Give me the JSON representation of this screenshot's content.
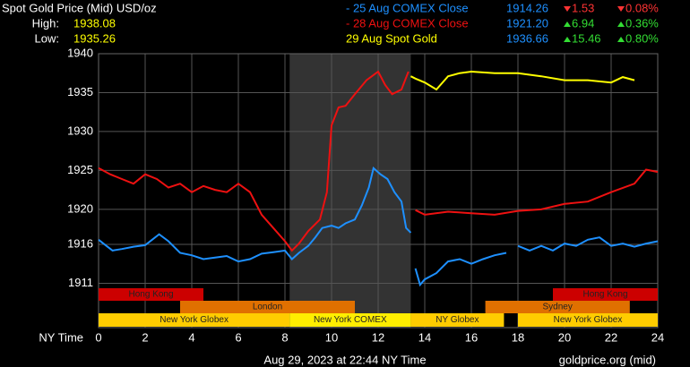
{
  "chart_data": {
    "type": "line",
    "title": "Spot Gold Price (Mid) USD/oz",
    "high_label": "High:",
    "high": "1938.08",
    "low_label": "Low:",
    "low": "1935.26",
    "xlabel": "NY Time",
    "footer": "Aug 29, 2023 at 22:44 NY Time",
    "source": "goldprice.org (mid)",
    "xlim": [
      0,
      24
    ],
    "xticks": [
      0,
      2,
      4,
      6,
      8,
      10,
      12,
      14,
      16,
      18,
      20,
      22,
      24
    ],
    "ylim": [
      1904.8,
      1940
    ],
    "yticks": [
      1940,
      1935,
      1930,
      1925,
      1920,
      {
        "value": 1915.5,
        "label": "1916"
      },
      {
        "value": 1910.5,
        "label": "1911"
      }
    ],
    "grid": true,
    "shaded": [
      8.2,
      13.4
    ],
    "series": [
      {
        "name": "- 25 Aug COMEX Close",
        "color": "#1e90ff",
        "close": "1914.26",
        "direction": "down",
        "change": "1.53",
        "change_pct": "0.08%",
        "x": [
          0,
          0.3,
          0.6,
          1,
          1.5,
          2,
          2.3,
          2.6,
          3,
          3.5,
          4,
          4.5,
          5,
          5.5,
          6,
          6.5,
          7,
          7.5,
          8,
          8.3,
          8.6,
          9,
          9.3,
          9.6,
          10,
          10.3,
          10.6,
          11,
          11.3,
          11.6,
          11.8,
          12.1,
          12.4,
          12.7,
          13,
          13.2,
          13.4,
          13.5,
          13.6,
          13.8,
          14,
          14.5,
          15,
          15.5,
          16,
          16.5,
          17,
          17.5,
          17.7,
          18,
          18.5,
          19,
          19.5,
          20,
          20.5,
          21,
          21.5,
          22,
          22.5,
          23,
          23.5,
          24
        ],
        "values": [
          1916.1,
          1915.4,
          1914.7,
          1914.9,
          1915.2,
          1915.4,
          1916.1,
          1916.8,
          1915.9,
          1914.4,
          1914.1,
          1913.6,
          1913.8,
          1914.0,
          1913.3,
          1913.6,
          1914.3,
          1914.5,
          1914.7,
          1913.6,
          1914.4,
          1915.3,
          1916.4,
          1917.6,
          1917.9,
          1917.6,
          1918.2,
          1918.7,
          1920.5,
          1922.8,
          1925.3,
          1924.5,
          1923.9,
          1922.2,
          1921.0,
          1917.6,
          1917.0,
          null,
          1912.4,
          1910.3,
          1911.0,
          1911.8,
          1913.3,
          1913.6,
          1913.0,
          1913.6,
          1914.1,
          1914.4,
          null,
          1915.3,
          1914.7,
          1915.3,
          1914.7,
          1915.6,
          1915.3,
          1916.1,
          1916.4,
          1915.3,
          1915.6,
          1915.2,
          1915.6,
          1915.9
        ]
      },
      {
        "name": "- 28 Aug COMEX Close",
        "color": "#ee1111",
        "close": "1921.20",
        "direction": "up",
        "change": "6.94",
        "change_pct": "0.36%",
        "x": [
          0,
          0.5,
          1,
          1.5,
          2,
          2.5,
          3,
          3.5,
          4,
          4.5,
          5,
          5.5,
          6,
          6.5,
          7,
          7.5,
          8,
          8.3,
          8.6,
          9,
          9.5,
          9.8,
          10,
          10.3,
          10.6,
          11,
          11.5,
          12,
          12.3,
          12.6,
          13,
          13.3,
          13.5,
          13.6,
          14,
          15,
          16,
          17,
          18,
          19,
          20,
          21,
          22,
          23,
          23.5,
          24
        ],
        "values": [
          1925.3,
          1924.5,
          1923.9,
          1923.3,
          1924.5,
          1923.9,
          1922.8,
          1923.3,
          1922.2,
          1923.0,
          1922.5,
          1922.2,
          1923.3,
          1922.2,
          1919.3,
          1917.6,
          1915.9,
          1914.7,
          1915.6,
          1917.2,
          1918.7,
          1922.2,
          1930.8,
          1933.1,
          1933.3,
          1934.8,
          1936.6,
          1937.7,
          1936.0,
          1934.8,
          1935.4,
          1937.7,
          null,
          1919.9,
          1919.3,
          1919.7,
          1919.5,
          1919.3,
          1919.8,
          1920.0,
          1920.7,
          1921.0,
          1922.2,
          1923.3,
          1925.1,
          1924.8
        ]
      },
      {
        "name": "29 Aug Spot Gold",
        "color": "#ffff00",
        "close": "1936.66",
        "direction": "up",
        "change": "15.46",
        "change_pct": "0.80%",
        "x": [
          13.4,
          13.6,
          14,
          14.5,
          15,
          15.5,
          16,
          17,
          18,
          19,
          20,
          21,
          22,
          22.5,
          23
        ],
        "values": [
          1937.1,
          1936.8,
          1936.3,
          1935.4,
          1937.1,
          1937.5,
          1937.7,
          1937.5,
          1937.5,
          1937.1,
          1936.6,
          1936.6,
          1936.3,
          1937.0,
          1936.6
        ]
      }
    ],
    "sessions": [
      {
        "name": "Hong Kong",
        "row": 0,
        "start": 0,
        "end": 4.5,
        "color": "#cc0000"
      },
      {
        "name": "Hong Kong",
        "row": 0,
        "start": 19.5,
        "end": 24,
        "color": "#cc0000"
      },
      {
        "name": "London",
        "row": 1,
        "start": 3.5,
        "end": 11,
        "color": "#e07000"
      },
      {
        "name": "Sydney",
        "row": 1,
        "start": 16.6,
        "end": 22.8,
        "color": "#e07000"
      },
      {
        "name": "New York Globex",
        "row": 2,
        "start": 0,
        "end": 8.2,
        "color": "#ffcc00"
      },
      {
        "name": "New York COMEX",
        "row": 2,
        "start": 8.2,
        "end": 13.4,
        "color": "#ffee00"
      },
      {
        "name": "NY Globex",
        "row": 2,
        "start": 13.4,
        "end": 17.4,
        "color": "#ffcc00"
      },
      {
        "name": "New York Globex",
        "row": 2,
        "start": 18,
        "end": 24,
        "color": "#ffcc00"
      }
    ]
  }
}
